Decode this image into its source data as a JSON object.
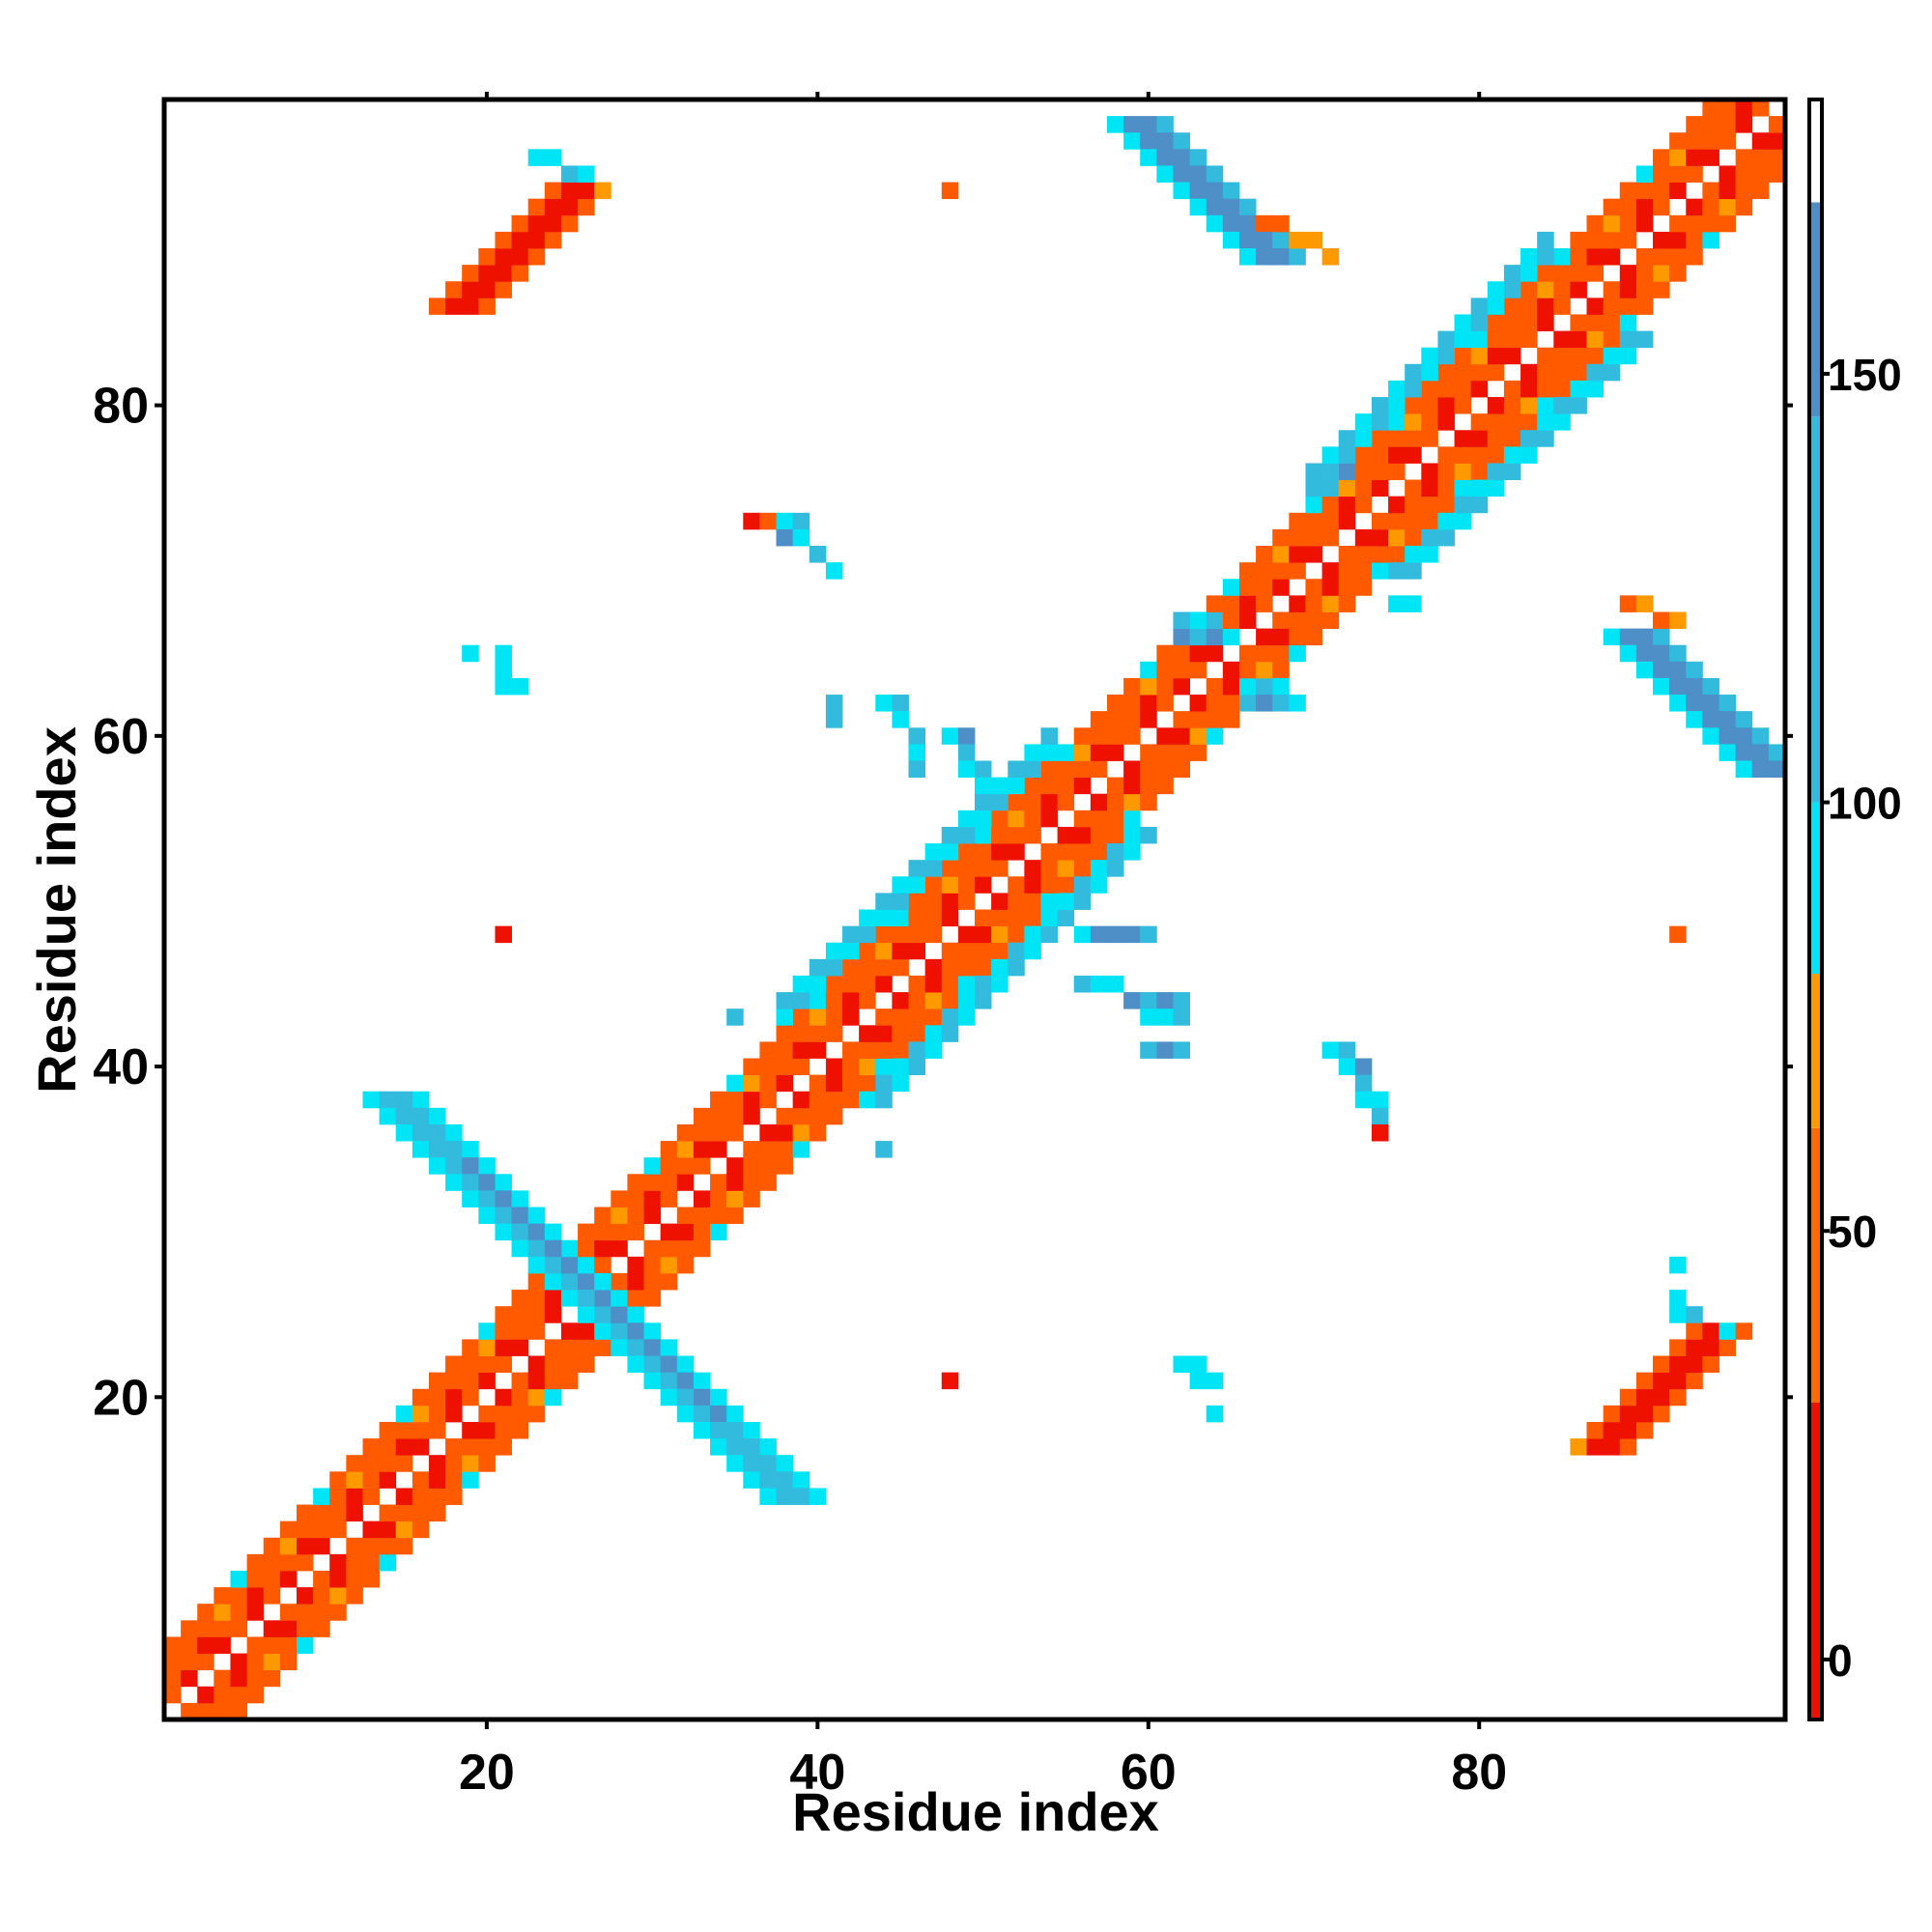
{
  "chart_data": {
    "type": "heatmap",
    "title": "",
    "xlabel": "Residue index",
    "ylabel": "Residue index",
    "xlim": [
      0.5,
      98.5
    ],
    "ylim": [
      0.5,
      98.5
    ],
    "x_ticks": [
      20,
      40,
      60,
      80
    ],
    "y_ticks": [
      20,
      40,
      60,
      80
    ],
    "colorbar": {
      "range": [
        -7,
        182
      ],
      "ticks": [
        0,
        50,
        100,
        150
      ],
      "segments": [
        {
          "from": -7,
          "to": 30,
          "color": "#ee1100"
        },
        {
          "from": 30,
          "to": 62,
          "color": "#ff6a00"
        },
        {
          "from": 62,
          "to": 80,
          "color": "#ff9900"
        },
        {
          "from": 80,
          "to": 100,
          "color": "#00e5f5"
        },
        {
          "from": 100,
          "to": 145,
          "color": "#33bbdd"
        },
        {
          "from": 145,
          "to": 170,
          "color": "#4d8fc6"
        },
        {
          "from": 170,
          "to": 182,
          "color": "#ffffff"
        }
      ]
    },
    "grid": false,
    "legend": "colorbar-right",
    "colors": {
      "red": "#ee1100",
      "orange_red": "#ff5a00",
      "orange": "#ff9900",
      "cyan": "#00e5f5",
      "sky_blue": "#33bbdd",
      "steel_blue": "#4d8fc6"
    },
    "regions": [
      {
        "kind": "diagonal-band",
        "x_range": [
          1,
          98
        ],
        "offsets": [
          -4,
          4
        ],
        "values_approx": [
          0,
          40,
          70
        ],
        "note_colors": "red/orange alternating with white center"
      },
      {
        "kind": "diagonal-helix-contacts",
        "x_range": [
          27,
          52
        ],
        "offsets": [
          -5,
          5
        ],
        "values_approx": [
          90,
          130
        ]
      },
      {
        "kind": "antidiagonal-strip",
        "x_start": 14,
        "y_start": 38,
        "x_end": 38,
        "y_end": 14,
        "values_approx": [
          95,
          130,
          160
        ]
      },
      {
        "kind": "antidiagonal-strip",
        "x_start": 58,
        "y_start": 97,
        "x_end": 66,
        "y_end": 88,
        "values_approx": [
          95,
          160
        ]
      },
      {
        "kind": "antidiagonal-strip",
        "x_start": 88,
        "y_start": 66,
        "x_end": 96,
        "y_end": 58,
        "values_approx": [
          95,
          160
        ]
      },
      {
        "kind": "parallel-strip",
        "x_range": [
          17,
          24
        ],
        "y_range": [
          86,
          94
        ],
        "values_approx": [
          10,
          40,
          70
        ]
      },
      {
        "kind": "parallel-strip",
        "x_range": [
          86,
          93
        ],
        "y_range": [
          17,
          24
        ],
        "values_approx": [
          10,
          40,
          70
        ]
      },
      {
        "kind": "scattered-contacts",
        "x_range": [
          35,
          96
        ],
        "y_range": [
          40,
          74
        ],
        "values_approx": [
          95,
          130,
          160
        ]
      }
    ]
  }
}
